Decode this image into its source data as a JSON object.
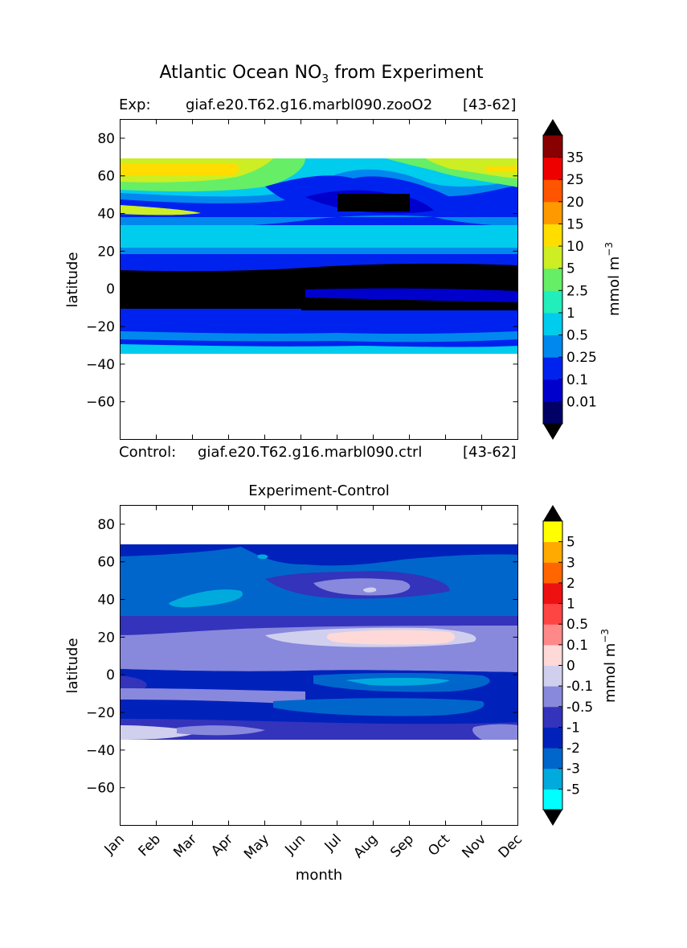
{
  "figure": {
    "title_main": "Atlantic Ocean NO",
    "title_sub": "3",
    "title_tail": " from Experiment",
    "exp_label": "Exp:",
    "exp_case": "giaf.e20.T62.g16.marbl090.zooO2",
    "exp_years": "[43-62]",
    "ctrl_label": "Control:",
    "ctrl_case": "giaf.e20.T62.g16.marbl090.ctrl",
    "ctrl_years": "[43-62]"
  },
  "chart_data": [
    {
      "type": "heatmap",
      "title": "",
      "xlabel": "",
      "ylabel": "latitude",
      "x_ticks": [
        "Jan",
        "Feb",
        "Mar",
        "Apr",
        "May",
        "Jun",
        "Jul",
        "Aug",
        "Sep",
        "Oct",
        "Nov",
        "Dec"
      ],
      "ylim": [
        -80,
        90
      ],
      "y_ticks": [
        80,
        60,
        40,
        20,
        0,
        -20,
        -40,
        -60
      ],
      "data_extent_lat": [
        -34,
        69
      ],
      "colorbar": {
        "label": "mmol m",
        "label_exp": "−3",
        "levels": [
          "0.01",
          "0.1",
          "0.25",
          "0.5",
          "1",
          "2.5",
          "5",
          "10",
          "15",
          "20",
          "25",
          "35"
        ],
        "colors": [
          "#000066",
          "#0000cc",
          "#0022ee",
          "#0088ee",
          "#00ccee",
          "#22eebb",
          "#66ee66",
          "#ccee22",
          "#ffdd00",
          "#ff9900",
          "#ff5500",
          "#ee0000",
          "#880000"
        ],
        "extend": "both"
      }
    },
    {
      "type": "heatmap",
      "title": "Experiment-Control",
      "xlabel": "month",
      "ylabel": "latitude",
      "x_ticks": [
        "Jan",
        "Feb",
        "Mar",
        "Apr",
        "May",
        "Jun",
        "Jul",
        "Aug",
        "Sep",
        "Oct",
        "Nov",
        "Dec"
      ],
      "ylim": [
        -80,
        90
      ],
      "y_ticks": [
        80,
        60,
        40,
        20,
        0,
        -20,
        -40,
        -60
      ],
      "data_extent_lat": [
        -34,
        69
      ],
      "colorbar": {
        "label": "mmol m",
        "label_exp": "−3",
        "levels": [
          "-5",
          "-3",
          "-2",
          "-1",
          "-0.5",
          "-0.1",
          "0",
          "0.1",
          "0.5",
          "1",
          "2",
          "3",
          "5"
        ],
        "colors": [
          "#00ffff",
          "#00aadd",
          "#0066cc",
          "#0022bb",
          "#3333bb",
          "#8888dd",
          "#d0d0ee",
          "#ffd8d8",
          "#ff8888",
          "#ff4444",
          "#ee1111",
          "#ff6600",
          "#ffaa00",
          "#ffff00"
        ],
        "extend": "both"
      }
    }
  ]
}
